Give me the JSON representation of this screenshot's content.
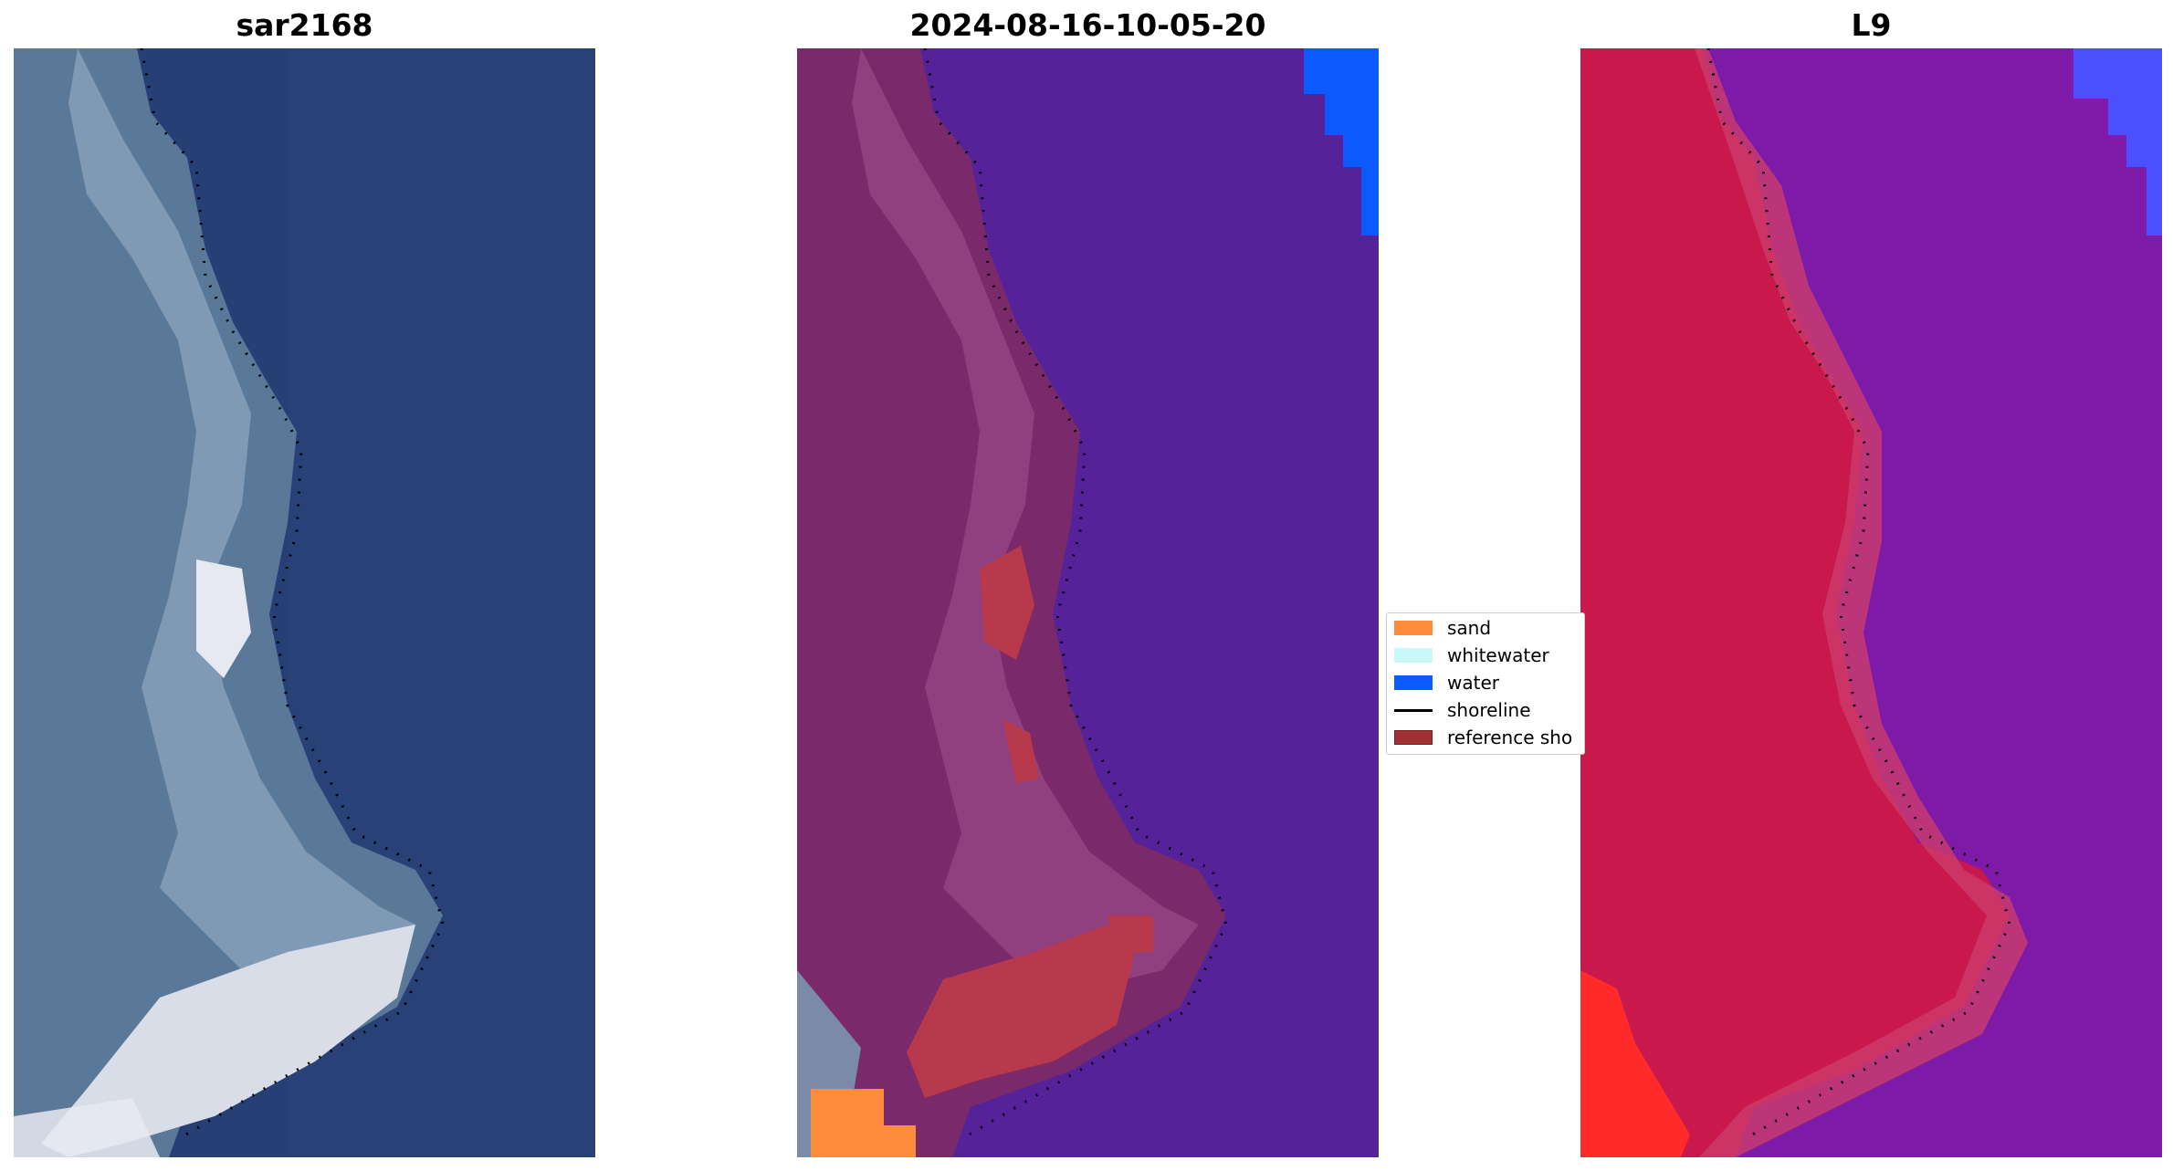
{
  "panels": [
    {
      "id": "rgb",
      "title": "sar2168"
    },
    {
      "id": "classified",
      "title": "2024-08-16-10-05-20"
    },
    {
      "id": "index",
      "title": "L9"
    }
  ],
  "legend": {
    "items": [
      {
        "label": "sand",
        "type": "patch",
        "color": "#ff8c3c"
      },
      {
        "label": "whitewater",
        "type": "patch",
        "color": "#c8f8f8"
      },
      {
        "label": "water",
        "type": "patch",
        "color": "#0a5aff"
      },
      {
        "label": "shoreline",
        "type": "line",
        "color": "#000000"
      },
      {
        "label": "reference sho",
        "type": "patch",
        "color": "#a03034",
        "edge": "#7a1e22"
      }
    ]
  },
  "colors": {
    "rgb_land": "#5a7898",
    "rgb_surf": "#d8dde8",
    "rgb_sea": "#263f74",
    "class_land": "#7a2a6a",
    "class_water": "#55229a",
    "class_sand": "#ff8c3c",
    "class_shore": "#a83848",
    "class_blue": "#0a5aff",
    "index_land": "#c8184c",
    "index_sea": "#7e1aa8",
    "index_red": "#ff2a2a",
    "index_blue": "#4a50ff"
  }
}
